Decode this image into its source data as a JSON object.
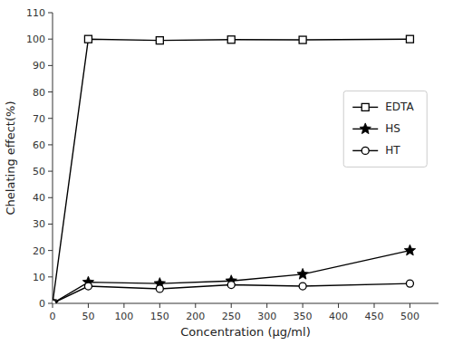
{
  "chart_data": {
    "type": "line",
    "xlabel": "Concentration (μg/ml)",
    "ylabel": "Chelating effect(%)",
    "x": [
      0,
      50,
      150,
      250,
      350,
      500
    ],
    "series": [
      {
        "name": "EDTA",
        "color": "#000000",
        "marker": "square",
        "values": [
          0,
          100,
          99.5,
          99.8,
          99.7,
          100
        ],
        "errors": [
          0,
          0.5,
          0.3,
          0.3,
          0.3,
          0.3
        ]
      },
      {
        "name": "HS",
        "color": "#000000",
        "marker": "star",
        "values": [
          0,
          8,
          7.5,
          8.5,
          11,
          20
        ],
        "errors": [
          0,
          0.8,
          0.5,
          0.6,
          0.8,
          0.8
        ]
      },
      {
        "name": "HT",
        "color": "#000000",
        "marker": "circle",
        "values": [
          0,
          6.5,
          5.5,
          7,
          6.5,
          7.5
        ],
        "errors": [
          0,
          0.5,
          0.4,
          0.5,
          0.5,
          0.5
        ]
      }
    ],
    "xlim": [
      0,
      540
    ],
    "ylim": [
      0,
      110
    ],
    "xticks": [
      0,
      50,
      100,
      150,
      200,
      250,
      300,
      350,
      400,
      450,
      500
    ],
    "yticks": [
      0,
      10,
      20,
      30,
      40,
      50,
      60,
      70,
      80,
      90,
      100,
      110
    ],
    "grid": false,
    "legend": "right"
  }
}
